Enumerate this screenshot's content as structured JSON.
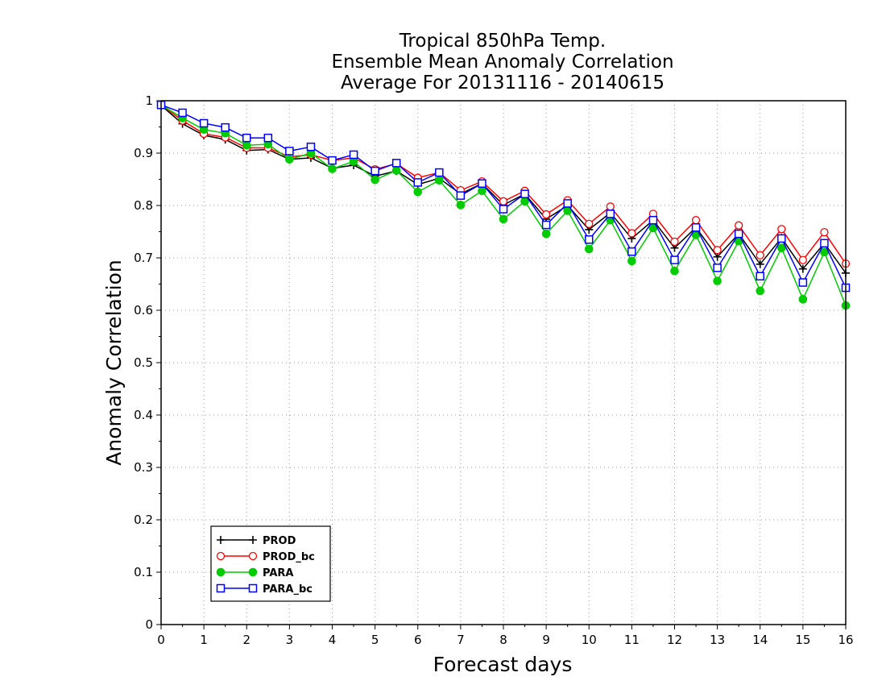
{
  "chart_data": {
    "type": "line",
    "title": [
      "Tropical 850hPa Temp.",
      "Ensemble Mean Anomaly Correlation",
      "Average For 20131116 - 20140615"
    ],
    "xlabel": "Forecast days",
    "ylabel": "Anomaly Correlation",
    "xlim": [
      0,
      16
    ],
    "ylim": [
      0,
      1
    ],
    "xticks": [
      "0",
      "1",
      "2",
      "3",
      "4",
      "5",
      "6",
      "7",
      "8",
      "9",
      "10",
      "11",
      "12",
      "13",
      "14",
      "15",
      "16"
    ],
    "yticks": [
      "0",
      "0.1",
      "0.2",
      "0.3",
      "0.4",
      "0.5",
      "0.6",
      "0.7",
      "0.8",
      "0.9",
      "1"
    ],
    "grid": true,
    "legend_position": "bottom-left",
    "x": [
      0,
      0.5,
      1,
      1.5,
      2,
      2.5,
      3,
      3.5,
      4,
      4.5,
      5,
      5.5,
      6,
      6.5,
      7,
      7.5,
      8,
      8.5,
      9,
      9.5,
      10,
      10.5,
      11,
      11.5,
      12,
      12.5,
      13,
      13.5,
      14,
      14.5,
      15,
      15.5,
      16
    ],
    "series": [
      {
        "name": "PROD",
        "color": "#000000",
        "marker": "plus",
        "values": [
          0.991,
          0.956,
          0.934,
          0.926,
          0.905,
          0.907,
          0.888,
          0.891,
          0.871,
          0.877,
          0.856,
          0.866,
          0.84,
          0.852,
          0.822,
          0.842,
          0.801,
          0.822,
          0.774,
          0.8,
          0.754,
          0.786,
          0.737,
          0.772,
          0.719,
          0.758,
          0.702,
          0.746,
          0.688,
          0.738,
          0.679,
          0.728,
          0.671
        ]
      },
      {
        "name": "PROD_bc",
        "color": "#ff0000",
        "marker": "circle-open",
        "values": [
          0.992,
          0.962,
          0.937,
          0.93,
          0.91,
          0.91,
          0.893,
          0.897,
          0.886,
          0.891,
          0.869,
          0.88,
          0.853,
          0.863,
          0.829,
          0.846,
          0.808,
          0.828,
          0.783,
          0.81,
          0.765,
          0.798,
          0.747,
          0.784,
          0.731,
          0.772,
          0.715,
          0.762,
          0.705,
          0.755,
          0.696,
          0.749,
          0.689
        ]
      },
      {
        "name": "PARA",
        "color": "#00cc00",
        "marker": "circle-filled",
        "values": [
          0.992,
          0.967,
          0.945,
          0.938,
          0.915,
          0.917,
          0.888,
          0.9,
          0.87,
          0.884,
          0.849,
          0.867,
          0.826,
          0.848,
          0.801,
          0.828,
          0.774,
          0.808,
          0.746,
          0.79,
          0.717,
          0.772,
          0.694,
          0.757,
          0.675,
          0.744,
          0.656,
          0.732,
          0.637,
          0.719,
          0.621,
          0.711,
          0.609
        ]
      },
      {
        "name": "PARA_bc",
        "color": "#0000ff",
        "marker": "square-open",
        "values": [
          0.992,
          0.977,
          0.957,
          0.949,
          0.929,
          0.929,
          0.904,
          0.912,
          0.886,
          0.897,
          0.866,
          0.881,
          0.844,
          0.863,
          0.819,
          0.842,
          0.793,
          0.822,
          0.763,
          0.804,
          0.735,
          0.784,
          0.712,
          0.772,
          0.696,
          0.758,
          0.681,
          0.746,
          0.665,
          0.737,
          0.653,
          0.728,
          0.643
        ]
      }
    ]
  }
}
